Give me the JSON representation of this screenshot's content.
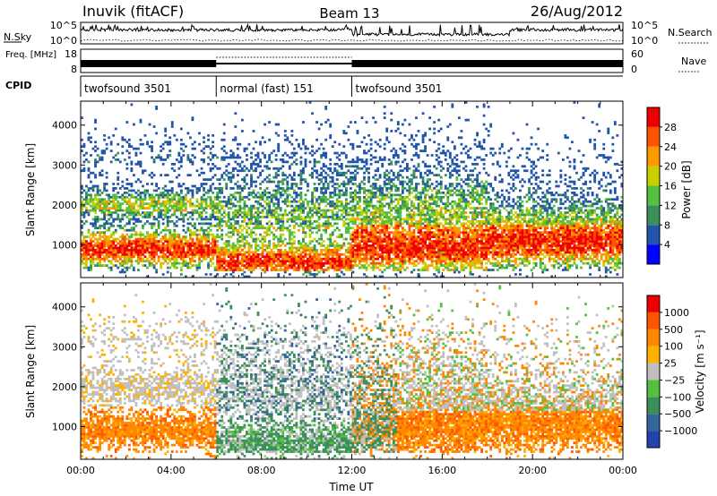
{
  "header": {
    "station": "Inuvik (fitACF)",
    "beam": "Beam 13",
    "date": "26/Aug/2012"
  },
  "colors": {
    "power": [
      "#0000ff",
      "#2255aa",
      "#3a8f5a",
      "#55c040",
      "#c8d000",
      "#ff9900",
      "#ff5500",
      "#ee0000"
    ],
    "velocity": [
      "#2244aa",
      "#33669a",
      "#3a8f5a",
      "#55c040",
      "#c0c0c0",
      "#ffb000",
      "#ff8800",
      "#ff5500",
      "#ee0000"
    ]
  },
  "chart_data": [
    {
      "type": "line",
      "ylabel_left": "N.Sky",
      "ylabel_right": "N.Search",
      "yticks_left": [
        "10^5",
        "10^0"
      ],
      "yticks_right": [
        "10^5",
        "10^0"
      ],
      "series": []
    },
    {
      "type": "line",
      "ylabel_left": "Freq. [MHz]",
      "ylabel_right": "Nave",
      "yticks_left": [
        "18",
        "8"
      ],
      "yticks_right": [
        "60",
        "0"
      ],
      "series": []
    },
    {
      "type": "table",
      "label": "CPID",
      "segments": [
        {
          "name": "twofsound 3501",
          "start": 0,
          "end": 6
        },
        {
          "name": "normal (fast) 151",
          "start": 6,
          "end": 12
        },
        {
          "name": "twofsound 3501",
          "start": 12,
          "end": 24
        }
      ]
    },
    {
      "type": "heatmap",
      "ylabel": "Slant Range [km]",
      "yticks": [
        1000,
        2000,
        3000,
        4000
      ],
      "ylim": [
        180,
        4600
      ],
      "xlim": [
        0,
        24
      ],
      "colorbar_label": "Power [dB]",
      "colorbar_ticks": [
        "4",
        "8",
        "12",
        "16",
        "20",
        "24",
        "28"
      ]
    },
    {
      "type": "heatmap",
      "ylabel": "Slant Range [km]",
      "yticks": [
        1000,
        2000,
        3000,
        4000
      ],
      "ylim": [
        180,
        4600
      ],
      "xlim": [
        0,
        24
      ],
      "xlabel": "Time UT",
      "xtick_labels": [
        "00:00",
        "04:00",
        "08:00",
        "12:00",
        "16:00",
        "20:00",
        "00:00"
      ],
      "colorbar_label": "Velocity [m s⁻¹]",
      "colorbar_ticks": [
        "1000",
        "500",
        "100",
        "25",
        "−25",
        "−100",
        "−500",
        "−1000"
      ]
    }
  ]
}
